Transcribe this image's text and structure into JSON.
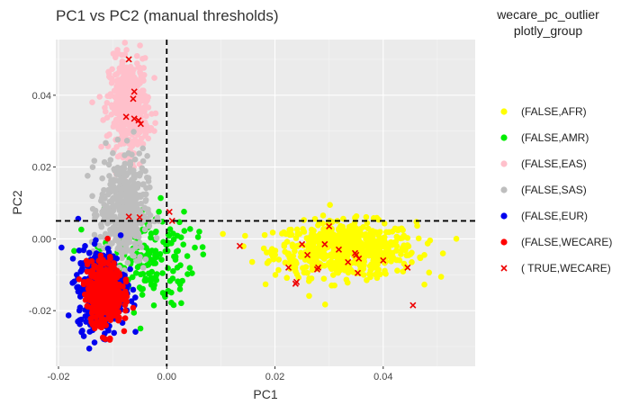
{
  "chart_data": {
    "type": "scatter",
    "title": "PC1 vs PC2 (manual thresholds)",
    "xlabel": "PC1",
    "ylabel": "PC2",
    "xlim": [
      -0.0205,
      0.057
    ],
    "ylim": [
      -0.0355,
      0.0555
    ],
    "x_ticks": [
      -0.02,
      0.0,
      0.02,
      0.04
    ],
    "x_tick_labels": [
      "-0.02",
      "0.00",
      "0.02",
      "0.04"
    ],
    "y_ticks": [
      -0.02,
      0.0,
      0.02,
      0.04
    ],
    "y_tick_labels": [
      "-0.02",
      "0.00",
      "0.02",
      "0.04"
    ],
    "grid": true,
    "thresholds": {
      "x": 0.0,
      "y": 0.005
    },
    "legend": {
      "title_line1": "wecare_pc_outlier",
      "title_line2": "plotly_group",
      "position": "right"
    },
    "series": [
      {
        "name": "(FALSE,AFR)",
        "color": "#ffff00",
        "marker": "circle",
        "cluster": {
          "cx": 0.033,
          "cy": -0.003,
          "sx": 0.0065,
          "sy": 0.0038,
          "n": 650
        }
      },
      {
        "name": "(FALSE,AMR)",
        "color": "#00ee00",
        "marker": "circle",
        "cluster": {
          "cx": -0.004,
          "cy": -0.005,
          "sx": 0.0045,
          "sy": 0.007,
          "n": 180
        }
      },
      {
        "name": "(FALSE,EAS)",
        "color": "#ffc0cb",
        "marker": "circle",
        "cluster": {
          "cx": -0.007,
          "cy": 0.037,
          "sx": 0.0018,
          "sy": 0.0065,
          "n": 450
        }
      },
      {
        "name": "(FALSE,SAS)",
        "color": "#bebebe",
        "marker": "circle",
        "cluster": {
          "cx": -0.008,
          "cy": 0.008,
          "sx": 0.0022,
          "sy": 0.0075,
          "n": 450
        }
      },
      {
        "name": "(FALSE,EUR)",
        "color": "#0000ee",
        "marker": "circle",
        "cluster": {
          "cx": -0.012,
          "cy": -0.014,
          "sx": 0.0022,
          "sy": 0.0055,
          "n": 450
        }
      },
      {
        "name": "(FALSE,WECARE)",
        "color": "#ff0000",
        "marker": "circle",
        "cluster": {
          "cx": -0.0115,
          "cy": -0.015,
          "sx": 0.0016,
          "sy": 0.0042,
          "n": 520
        }
      },
      {
        "name": "( TRUE,WECARE)",
        "color": "#ee0000",
        "marker": "x",
        "points": [
          [
            -0.007,
            0.05
          ],
          [
            -0.006,
            0.041
          ],
          [
            -0.0062,
            0.039
          ],
          [
            -0.0075,
            0.034
          ],
          [
            -0.0052,
            0.033
          ],
          [
            -0.0048,
            0.032
          ],
          [
            -0.006,
            0.0335
          ],
          [
            -0.007,
            0.0062
          ],
          [
            -0.005,
            0.006
          ],
          [
            0.0005,
            0.0075
          ],
          [
            0.001,
            0.005
          ],
          [
            0.0135,
            -0.002
          ],
          [
            0.0225,
            -0.008
          ],
          [
            0.024,
            -0.012
          ],
          [
            0.025,
            -0.0015
          ],
          [
            0.0278,
            -0.0085
          ],
          [
            0.028,
            -0.008
          ],
          [
            0.0292,
            -0.0015
          ],
          [
            0.03,
            0.0035
          ],
          [
            0.0318,
            -0.003
          ],
          [
            0.0335,
            -0.0065
          ],
          [
            0.035,
            -0.0045
          ],
          [
            0.0355,
            -0.0055
          ],
          [
            0.0353,
            -0.0095
          ],
          [
            0.0348,
            -0.004
          ],
          [
            0.04,
            -0.006
          ],
          [
            0.0445,
            -0.008
          ],
          [
            0.0455,
            -0.0185
          ],
          [
            0.0238,
            -0.0125
          ],
          [
            0.026,
            -0.0045
          ]
        ]
      }
    ]
  }
}
